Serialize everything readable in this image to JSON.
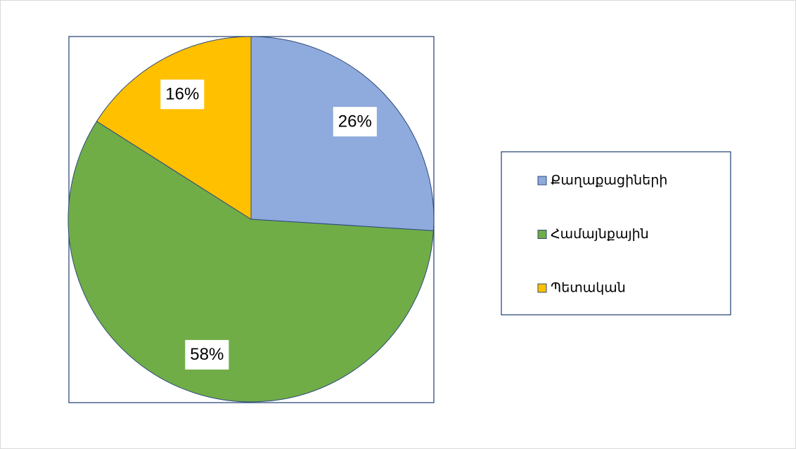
{
  "chart_data": {
    "type": "pie",
    "categories": [
      "Քաղաքացիների",
      "Համայնքային",
      "Պետական"
    ],
    "values": [
      26,
      58,
      16
    ],
    "value_labels": [
      "26%",
      "58%",
      "16%"
    ],
    "colors": [
      "#8faadc",
      "#70ad47",
      "#ffc000"
    ],
    "legend": "right"
  }
}
